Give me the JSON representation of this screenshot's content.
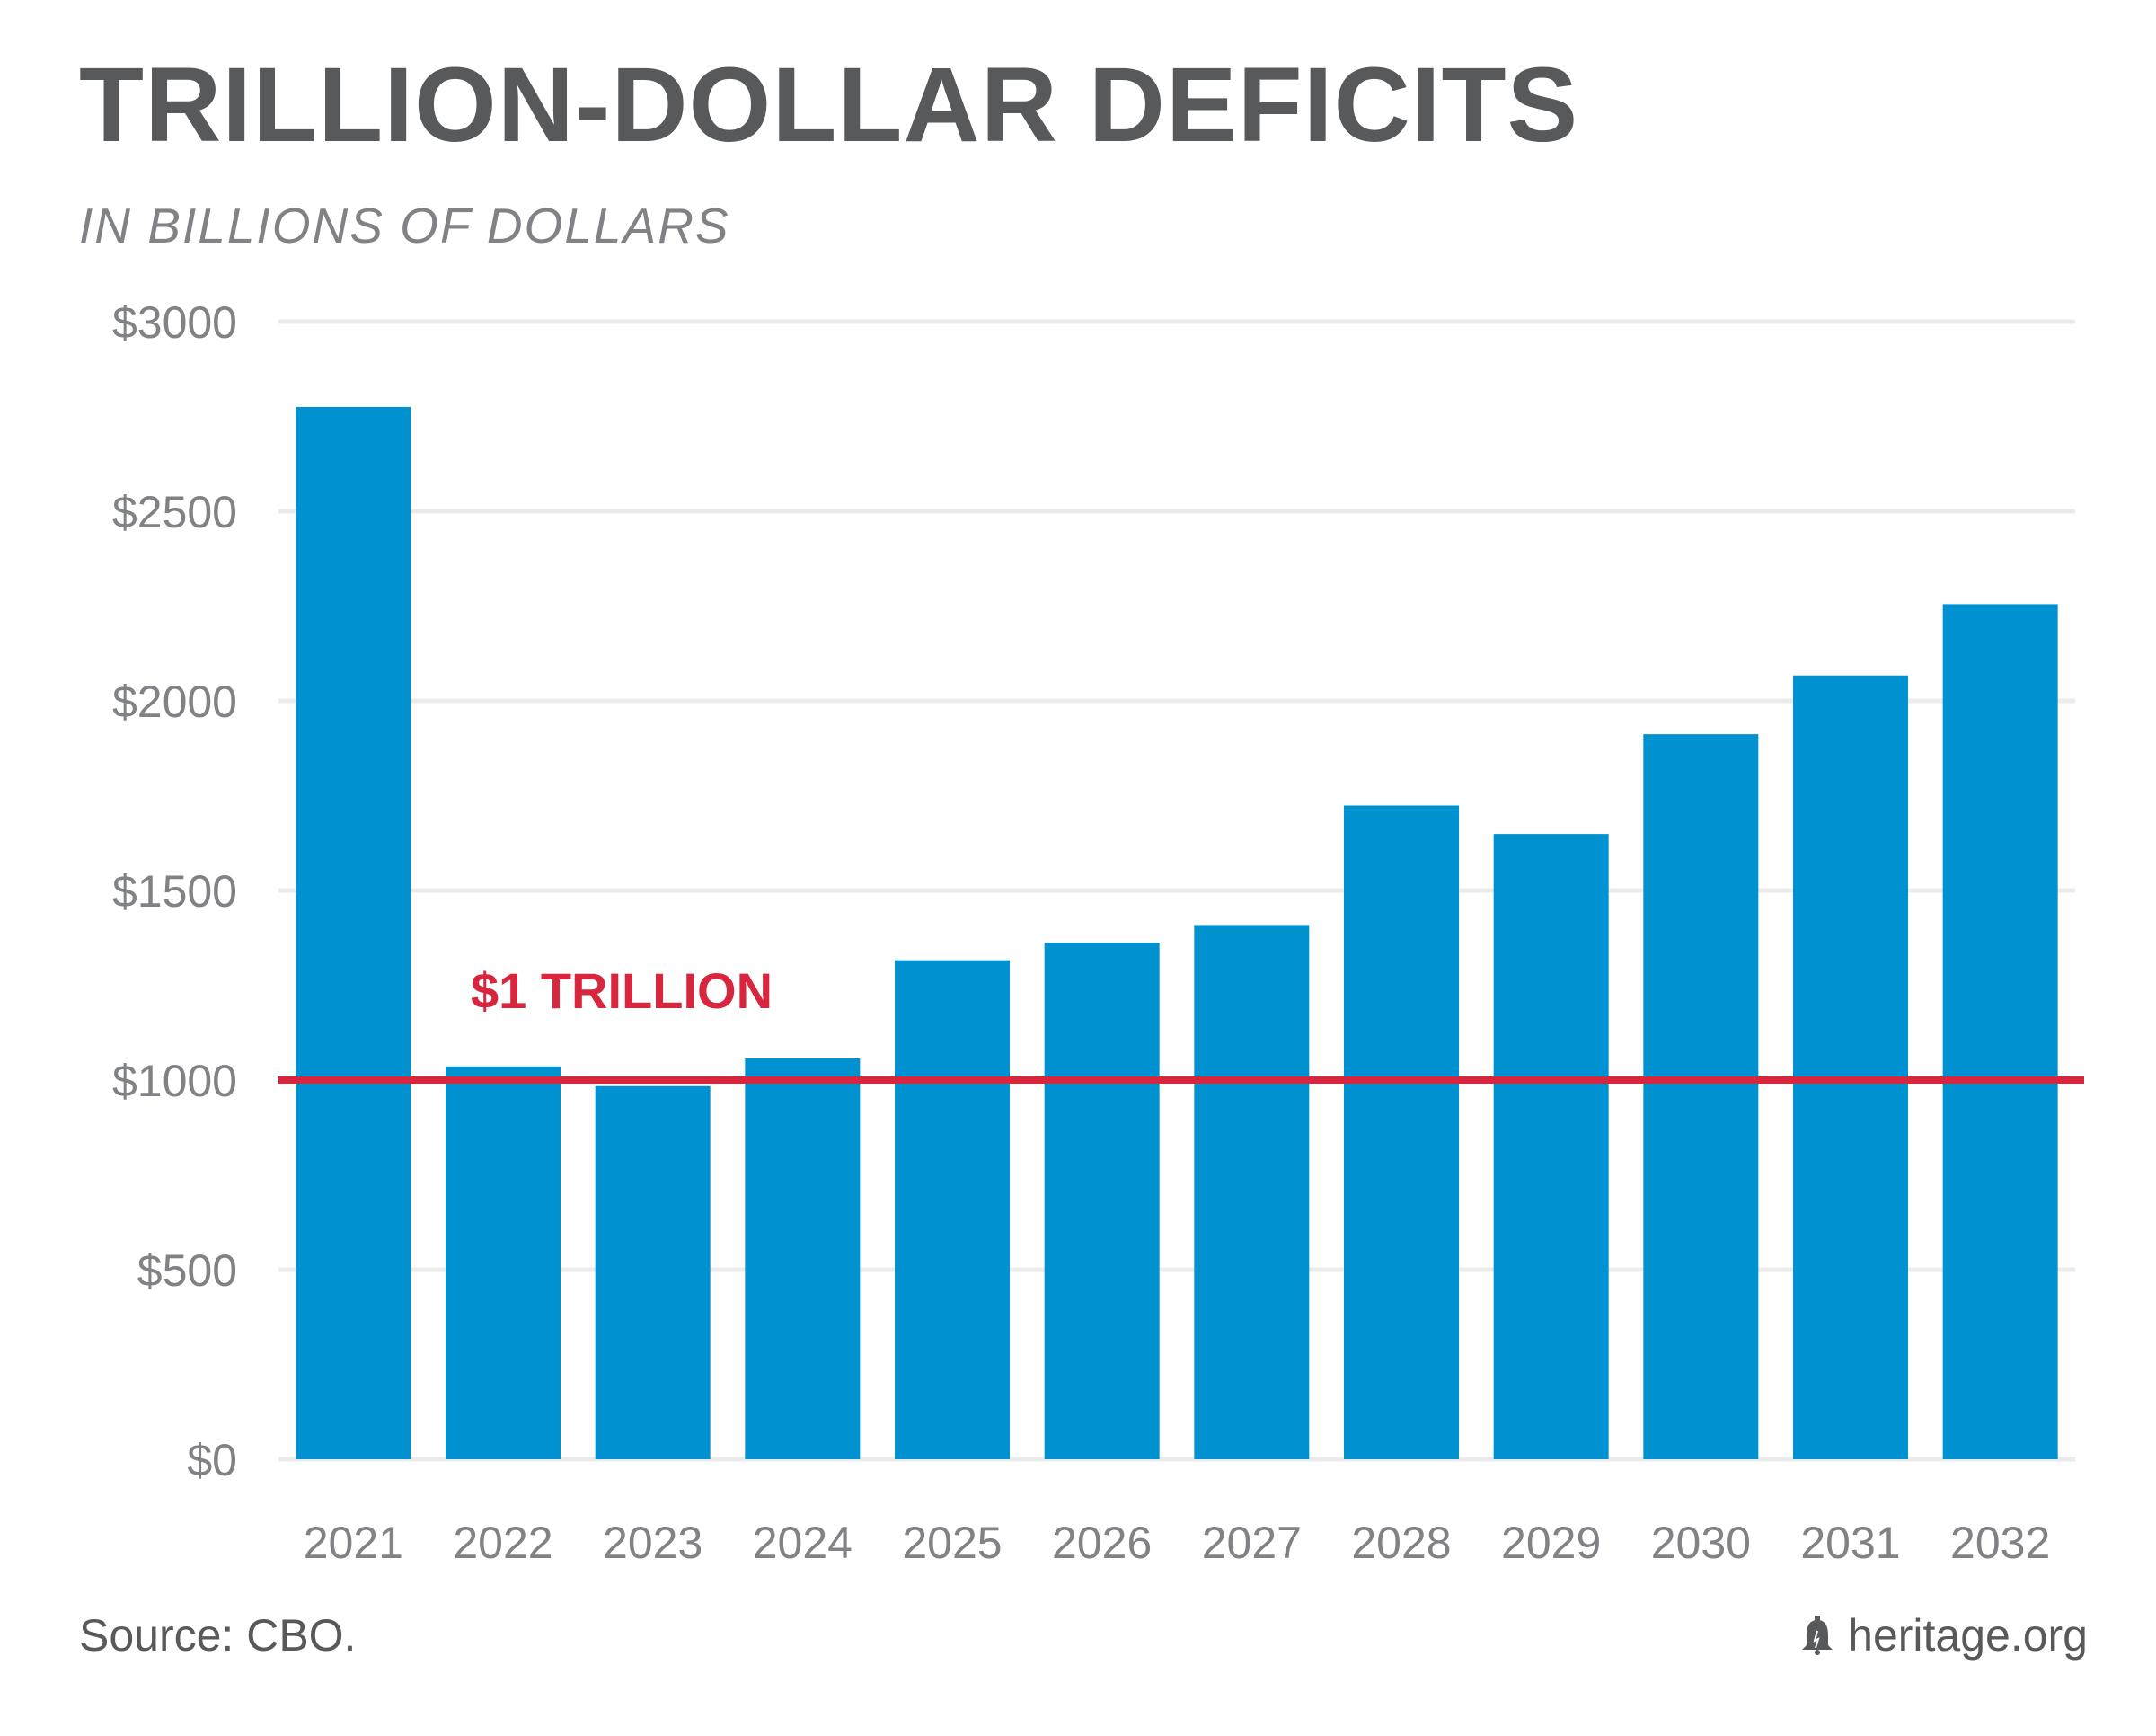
{
  "title": "TRILLION-DOLLAR DEFICITS",
  "subtitle": "IN BILLIONS OF DOLLARS",
  "footer": {
    "source": "Source: CBO.",
    "brand": "heritage.org",
    "brand_icon": "liberty-bell-icon"
  },
  "colors": {
    "bar": "#0092d0",
    "reference_line": "#d7263d",
    "gridline": "#ebebeb",
    "axis_text": "#808285",
    "title": "#58595b"
  },
  "chart_data": {
    "type": "bar",
    "title": "TRILLION-DOLLAR DEFICITS",
    "subtitle": "IN BILLIONS OF DOLLARS",
    "xlabel": "",
    "ylabel": "",
    "categories": [
      "2021",
      "2022",
      "2023",
      "2024",
      "2025",
      "2026",
      "2027",
      "2028",
      "2029",
      "2030",
      "2031",
      "2032"
    ],
    "values": [
      2775,
      1036,
      984,
      1057,
      1316,
      1362,
      1409,
      1724,
      1649,
      1912,
      2067,
      2255
    ],
    "ylim": [
      0,
      3000
    ],
    "yticks": [
      0,
      500,
      1000,
      1500,
      2000,
      2500,
      3000
    ],
    "ytick_labels": [
      "$0",
      "$500",
      "$1000",
      "$1500",
      "$2000",
      "$2500",
      "$3000"
    ],
    "grid": true,
    "legend": "none",
    "reference_line": {
      "value": 1000,
      "label": "$1 TRILLION"
    }
  }
}
